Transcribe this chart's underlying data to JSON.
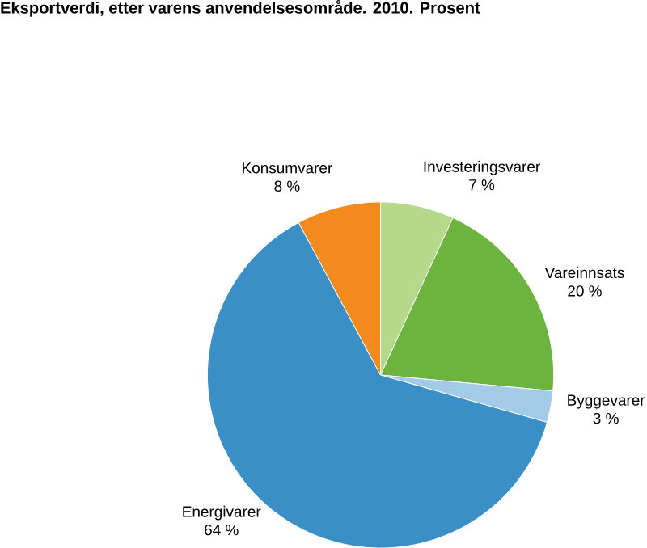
{
  "chart_data": {
    "type": "pie",
    "title": "Eksportverdi, etter varens anvendelsesområde. 2010. Prosent",
    "categories": [
      "Investeringsvarer",
      "Vareinnsats",
      "Byggevarer",
      "Energivarer",
      "Konsumvarer"
    ],
    "values": [
      7,
      20,
      3,
      64,
      8
    ],
    "value_labels": [
      "7 %",
      "20 %",
      "3 %",
      "64 %",
      "8 %"
    ],
    "colors": [
      "#b5d98a",
      "#6db33f",
      "#a3cbe8",
      "#3a8fc6",
      "#f28a1e"
    ]
  }
}
